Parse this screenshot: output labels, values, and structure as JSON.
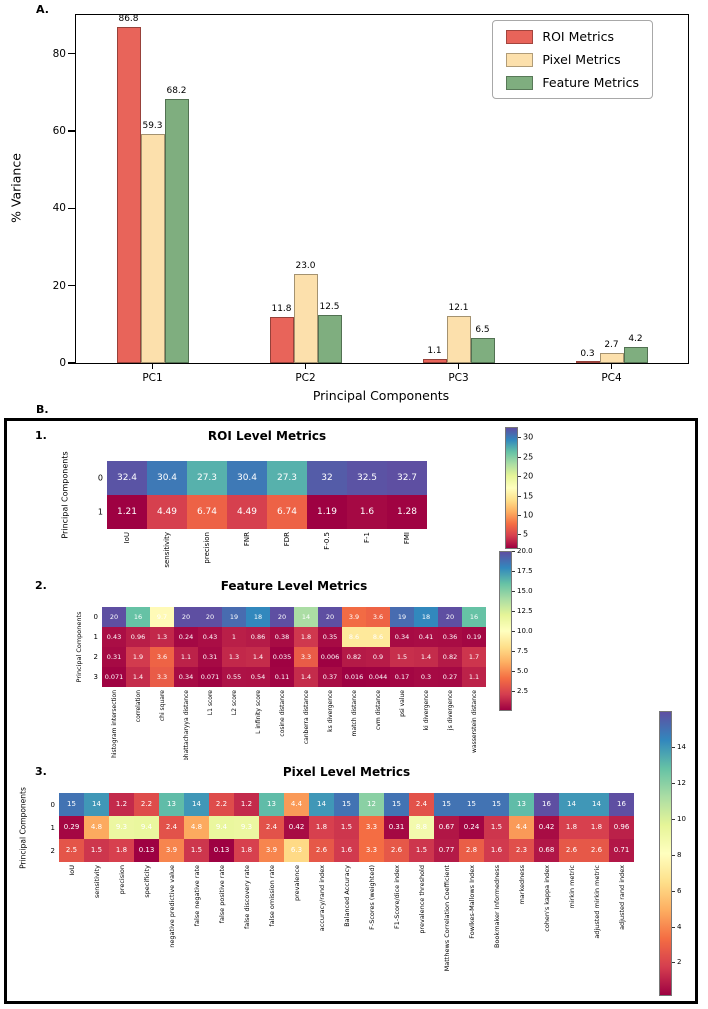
{
  "figure": {
    "panel_a_label": "A.",
    "panel_b_label": "B."
  },
  "colormap": {
    "name": "Spectral",
    "stops": [
      "#9e0142",
      "#d53e4f",
      "#f46d43",
      "#fdae61",
      "#fee08b",
      "#ffffbf",
      "#e6f598",
      "#abdda4",
      "#66c2a5",
      "#3288bd",
      "#5e4fa2"
    ]
  },
  "chart_data": [
    {
      "type": "bar",
      "title": "",
      "xlabel": "Principal Components",
      "ylabel": "% Variance",
      "categories": [
        "PC1",
        "PC2",
        "PC3",
        "PC4"
      ],
      "series": [
        {
          "name": "ROI Metrics",
          "color": "#e8645a",
          "values": [
            86.8,
            11.8,
            1.1,
            0.3
          ]
        },
        {
          "name": "Pixel Metrics",
          "color": "#fce0ac",
          "values": [
            59.3,
            23.0,
            12.1,
            2.7
          ]
        },
        {
          "name": "Feature Metrics",
          "color": "#7fae7f",
          "values": [
            68.2,
            12.5,
            6.5,
            4.2
          ]
        }
      ],
      "ylim": [
        0,
        90
      ],
      "yticks": [
        0,
        20,
        40,
        60,
        80
      ],
      "legend_position": "top-right",
      "grid": false
    },
    {
      "type": "heatmap",
      "index_label": "1.",
      "title": "ROI Level Metrics",
      "ylabel": "Principal Components",
      "rows": [
        "0",
        "1"
      ],
      "columns": [
        "IoU",
        "sensitivity",
        "precision",
        "FNR",
        "FDR",
        "F-0.5",
        "F-1",
        "FMI"
      ],
      "values": [
        [
          32.4,
          30.4,
          27.3,
          30.4,
          27.3,
          32,
          32.5,
          32.7
        ],
        [
          1.21,
          4.49,
          6.74,
          4.49,
          6.74,
          1.19,
          1.6,
          1.28
        ]
      ],
      "colorbar_ticks": [
        "5",
        "10",
        "15",
        "20",
        "25",
        "30"
      ]
    },
    {
      "type": "heatmap",
      "index_label": "2.",
      "title": "Feature Level Metrics",
      "ylabel": "Principal Components",
      "rows": [
        "0",
        "1",
        "2",
        "3"
      ],
      "columns": [
        "histogram intersection",
        "correlation",
        "chi square",
        "bhattacharyya distance",
        "L1 score",
        "L2 score",
        "L infinity score",
        "cosine distance",
        "canberra distance",
        "ks divergence",
        "match distance",
        "cvm distance",
        "psi value",
        "ki divergence",
        "js divergence",
        "wasserstein distance"
      ],
      "values": [
        [
          20,
          16,
          9.7,
          20,
          20,
          19,
          18,
          20,
          14,
          20,
          3.9,
          3.6,
          19,
          18,
          20,
          16
        ],
        [
          0.43,
          0.96,
          1.3,
          0.24,
          0.43,
          1,
          0.86,
          0.38,
          1.8,
          0.35,
          8.6,
          8.6,
          0.34,
          0.41,
          0.36,
          0.19
        ],
        [
          0.31,
          1.9,
          3.6,
          1.1,
          0.31,
          1.3,
          1.4,
          0.035,
          3.3,
          0.006,
          0.82,
          0.9,
          1.5,
          1.4,
          0.82,
          1.7
        ],
        [
          0.071,
          1.4,
          3.3,
          0.34,
          0.071,
          0.55,
          0.54,
          0.11,
          1.4,
          0.37,
          0.016,
          0.044,
          0.17,
          0.3,
          0.27,
          1.1
        ]
      ],
      "colorbar_ticks": [
        "2.5",
        "5.0",
        "7.5",
        "10.0",
        "12.5",
        "15.0",
        "17.5",
        "20.0"
      ]
    },
    {
      "type": "heatmap",
      "index_label": "3.",
      "title": "Pixel Level Metrics",
      "ylabel": "Principal Components",
      "rows": [
        "0",
        "1",
        "2"
      ],
      "columns": [
        "IoU",
        "sensitivity",
        "precision",
        "specificity",
        "negative predictive value",
        "false negative rate",
        "false positive rate",
        "false discovery rate",
        "false omission rate",
        "prevalence",
        "accuracy/rand index",
        "Balanced Accuracy",
        "F-Scores (weighted)",
        "F1-Score/dice index",
        "prevalence threshold",
        "Matthews Correlation Coefficient",
        "Fowlkes-Mallows Index",
        "Bookmaker Informedness",
        "markedness",
        "cohen's kappa index",
        "mirkin metric",
        "adjusted mirkin metric",
        "adjusted rand index"
      ],
      "values": [
        [
          15,
          14,
          1.2,
          2.2,
          13,
          14,
          2.2,
          1.2,
          13,
          4.4,
          14,
          15,
          12,
          15,
          2.4,
          15,
          15,
          15,
          13,
          16,
          14,
          14,
          16
        ],
        [
          0.29,
          4.8,
          9.3,
          9.4,
          2.4,
          4.8,
          9.4,
          9.3,
          2.4,
          0.42,
          1.8,
          1.5,
          3.3,
          0.31,
          8.8,
          0.67,
          0.24,
          1.5,
          4.4,
          0.42,
          1.8,
          1.8,
          0.96
        ],
        [
          2.5,
          1.5,
          1.8,
          0.13,
          3.9,
          1.5,
          0.13,
          1.8,
          3.9,
          6.3,
          2.6,
          1.6,
          3.3,
          2.6,
          1.5,
          0.77,
          2.8,
          1.6,
          2.3,
          0.68,
          2.6,
          2.6,
          0.71
        ]
      ],
      "colorbar_ticks": [
        "2",
        "4",
        "6",
        "8",
        "10",
        "12",
        "14"
      ]
    }
  ]
}
